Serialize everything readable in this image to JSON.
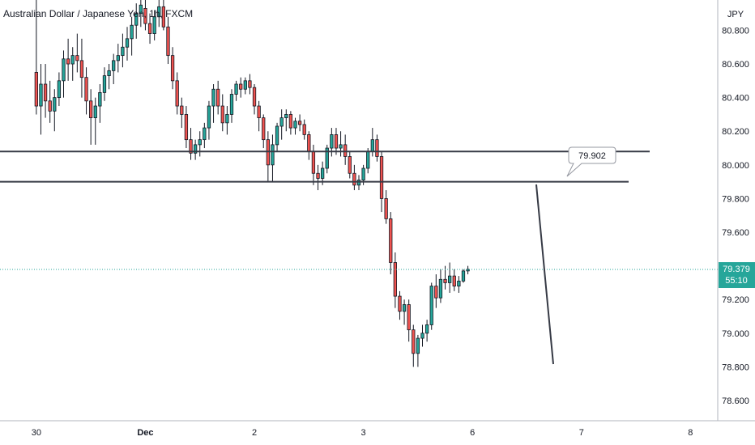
{
  "header": {
    "title": "Australian Dollar / Japanese Yen, 1h, FXCM"
  },
  "price_axis": {
    "currency": "JPY",
    "current_price": "79.379",
    "countdown": "55:10"
  },
  "annotation": {
    "label": "79.902"
  },
  "colors": {
    "up": "#26a69a",
    "down": "#ef5350",
    "outline": "#131722",
    "line": "#363a45",
    "price_tag": "#26a69a"
  },
  "chart_data": {
    "type": "candlestick",
    "title": "Australian Dollar / Japanese Yen, 1h, FXCM",
    "y_unit": "JPY",
    "ylim": [
      78.48,
      80.98
    ],
    "y_ticks": [
      "80.800",
      "80.600",
      "80.400",
      "80.200",
      "80.000",
      "79.800",
      "79.600",
      "79.400",
      "79.200",
      "79.000",
      "78.800",
      "78.600"
    ],
    "x_ticks": [
      "30",
      "Dec",
      "2",
      "3",
      "6",
      "7",
      "8"
    ],
    "grid": false,
    "horizontal_levels": [
      80.08,
      79.9
    ],
    "current_price": 79.379,
    "x_index_range": [
      -8,
      150
    ],
    "x_tick_index": [
      0,
      24,
      48,
      72,
      96,
      120,
      144
    ],
    "candles": [
      [
        80.55,
        80.98,
        80.3,
        80.35
      ],
      [
        80.35,
        80.6,
        80.18,
        80.48
      ],
      [
        80.48,
        80.6,
        80.28,
        80.38
      ],
      [
        80.38,
        80.5,
        80.25,
        80.32
      ],
      [
        80.32,
        80.45,
        80.2,
        80.4
      ],
      [
        80.4,
        80.55,
        80.35,
        80.5
      ],
      [
        80.5,
        80.68,
        80.4,
        80.63
      ],
      [
        80.63,
        80.75,
        80.5,
        80.6
      ],
      [
        80.6,
        80.7,
        80.5,
        80.65
      ],
      [
        80.65,
        80.78,
        80.55,
        80.62
      ],
      [
        80.62,
        80.75,
        80.4,
        80.52
      ],
      [
        80.52,
        80.58,
        80.3,
        80.38
      ],
      [
        80.38,
        80.45,
        80.12,
        80.28
      ],
      [
        80.28,
        80.4,
        80.12,
        80.35
      ],
      [
        80.35,
        80.48,
        80.25,
        80.43
      ],
      [
        80.43,
        80.58,
        80.38,
        80.53
      ],
      [
        80.53,
        80.6,
        80.45,
        80.56
      ],
      [
        80.56,
        80.66,
        80.48,
        80.62
      ],
      [
        80.62,
        80.72,
        80.55,
        80.65
      ],
      [
        80.65,
        80.78,
        80.58,
        80.7
      ],
      [
        80.7,
        80.82,
        80.62,
        80.75
      ],
      [
        80.75,
        80.88,
        80.65,
        80.83
      ],
      [
        80.83,
        80.96,
        80.75,
        80.9
      ],
      [
        80.9,
        80.98,
        80.82,
        80.95
      ],
      [
        80.93,
        80.98,
        80.8,
        80.84
      ],
      [
        80.84,
        80.9,
        80.72,
        80.78
      ],
      [
        80.78,
        80.92,
        80.74,
        80.88
      ],
      [
        80.88,
        80.98,
        80.82,
        80.94
      ],
      [
        80.94,
        80.98,
        80.8,
        80.82
      ],
      [
        80.82,
        80.88,
        80.6,
        80.65
      ],
      [
        80.65,
        80.7,
        80.45,
        80.5
      ],
      [
        80.5,
        80.55,
        80.3,
        80.35
      ],
      [
        80.35,
        80.4,
        80.22,
        80.3
      ],
      [
        80.3,
        80.35,
        80.1,
        80.15
      ],
      [
        80.15,
        80.22,
        80.03,
        80.07
      ],
      [
        80.07,
        80.15,
        80.03,
        80.12
      ],
      [
        80.12,
        80.2,
        80.05,
        80.15
      ],
      [
        80.15,
        80.25,
        80.1,
        80.22
      ],
      [
        80.22,
        80.38,
        80.15,
        80.35
      ],
      [
        80.35,
        80.48,
        80.25,
        80.45
      ],
      [
        80.45,
        80.5,
        80.3,
        80.35
      ],
      [
        80.35,
        80.42,
        80.2,
        80.25
      ],
      [
        80.25,
        80.35,
        80.18,
        80.3
      ],
      [
        80.3,
        80.45,
        80.25,
        80.42
      ],
      [
        80.42,
        80.5,
        80.38,
        80.48
      ],
      [
        80.48,
        80.52,
        80.4,
        80.45
      ],
      [
        80.45,
        80.52,
        80.42,
        80.5
      ],
      [
        80.5,
        80.54,
        80.42,
        80.46
      ],
      [
        80.46,
        80.48,
        80.3,
        80.35
      ],
      [
        80.35,
        80.38,
        80.2,
        80.28
      ],
      [
        80.28,
        80.3,
        80.1,
        80.15
      ],
      [
        80.15,
        80.2,
        79.9,
        80.0
      ],
      [
        80.0,
        80.18,
        79.9,
        80.12
      ],
      [
        80.12,
        80.25,
        80.08,
        80.23
      ],
      [
        80.23,
        80.33,
        80.15,
        80.28
      ],
      [
        80.28,
        80.33,
        80.2,
        80.3
      ],
      [
        80.3,
        80.32,
        80.18,
        80.22
      ],
      [
        80.22,
        80.28,
        80.18,
        80.26
      ],
      [
        80.26,
        80.3,
        80.2,
        80.24
      ],
      [
        80.24,
        80.27,
        80.15,
        80.18
      ],
      [
        80.18,
        80.2,
        80.03,
        80.08
      ],
      [
        80.08,
        80.12,
        79.88,
        79.95
      ],
      [
        79.95,
        80.0,
        79.85,
        79.92
      ],
      [
        79.92,
        80.02,
        79.88,
        79.98
      ],
      [
        79.98,
        80.12,
        79.95,
        80.1
      ],
      [
        80.1,
        80.22,
        80.05,
        80.18
      ],
      [
        80.18,
        80.22,
        80.06,
        80.1
      ],
      [
        80.1,
        80.2,
        80.05,
        80.12
      ],
      [
        80.12,
        80.18,
        80.0,
        80.05
      ],
      [
        80.05,
        80.08,
        79.92,
        79.95
      ],
      [
        79.95,
        80.0,
        79.85,
        79.88
      ],
      [
        79.88,
        79.94,
        79.85,
        79.91
      ],
      [
        79.91,
        80.0,
        79.88,
        79.98
      ],
      [
        79.98,
        80.1,
        79.95,
        80.08
      ],
      [
        80.08,
        80.22,
        80.05,
        80.15
      ],
      [
        80.15,
        80.18,
        80.02,
        80.05
      ],
      [
        80.05,
        80.08,
        79.72,
        79.8
      ],
      [
        79.8,
        79.85,
        79.65,
        79.68
      ],
      [
        79.68,
        79.72,
        79.35,
        79.42
      ],
      [
        79.42,
        79.48,
        79.15,
        79.22
      ],
      [
        79.22,
        79.25,
        79.08,
        79.13
      ],
      [
        79.13,
        79.2,
        79.05,
        79.17
      ],
      [
        79.17,
        79.2,
        78.95,
        79.02
      ],
      [
        79.02,
        79.05,
        78.8,
        78.88
      ],
      [
        78.88,
        78.99,
        78.8,
        78.97
      ],
      [
        78.97,
        79.05,
        78.92,
        79.0
      ],
      [
        79.0,
        79.08,
        78.95,
        79.05
      ],
      [
        79.05,
        79.3,
        79.02,
        79.28
      ],
      [
        79.28,
        79.35,
        79.15,
        79.21
      ],
      [
        79.21,
        79.38,
        79.18,
        79.32
      ],
      [
        79.32,
        79.4,
        79.26,
        79.3
      ],
      [
        79.3,
        79.42,
        79.24,
        79.34
      ],
      [
        79.34,
        79.38,
        79.25,
        79.28
      ],
      [
        79.28,
        79.34,
        79.24,
        79.31
      ],
      [
        79.31,
        79.38,
        79.3,
        79.37
      ],
      [
        79.37,
        79.4,
        79.35,
        79.38
      ]
    ]
  }
}
